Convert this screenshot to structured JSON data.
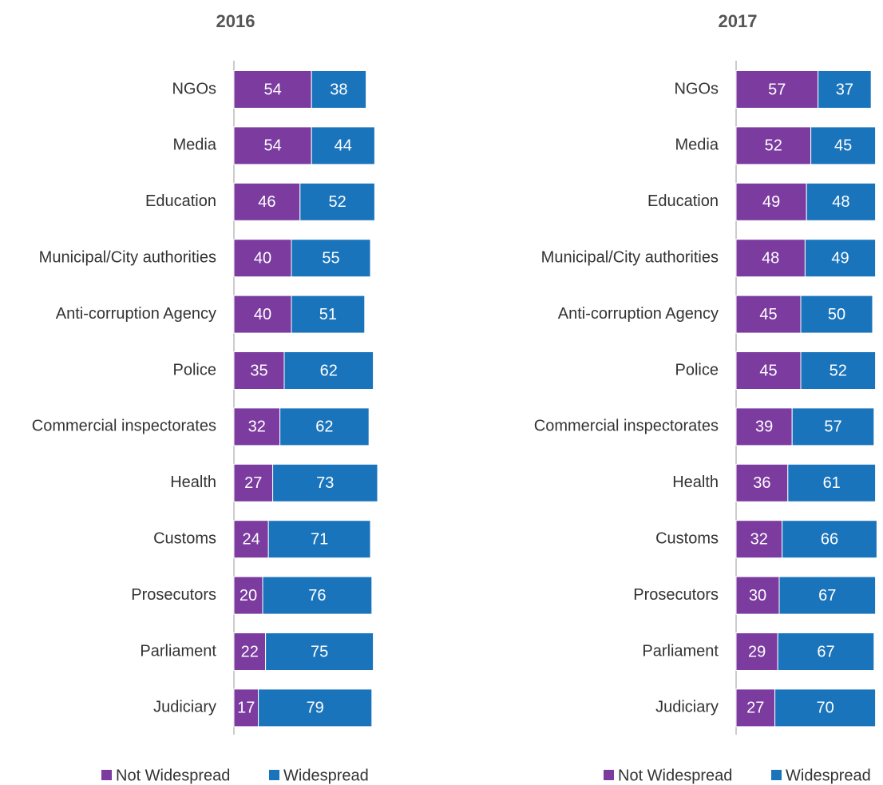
{
  "chart_data": [
    {
      "type": "bar",
      "stacked": true,
      "title": "2016",
      "categories": [
        "NGOs",
        "Media",
        "Education",
        "Municipal/City authorities",
        "Anti-corruption Agency",
        "Police",
        "Commercial inspectorates",
        "Health",
        "Customs",
        "Prosecutors",
        "Parliament",
        "Judiciary"
      ],
      "series": [
        {
          "name": "Not Widespread",
          "color": "#7b3b9f",
          "values": [
            54,
            54,
            46,
            40,
            40,
            35,
            32,
            27,
            24,
            20,
            22,
            17
          ]
        },
        {
          "name": "Widespread",
          "color": "#1a74bb",
          "values": [
            38,
            44,
            52,
            55,
            51,
            62,
            62,
            73,
            71,
            76,
            75,
            79
          ]
        }
      ]
    },
    {
      "type": "bar",
      "stacked": true,
      "title": "2017",
      "categories": [
        "NGOs",
        "Media",
        "Education",
        "Municipal/City authorities",
        "Anti-corruption Agency",
        "Police",
        "Commercial inspectorates",
        "Health",
        "Customs",
        "Prosecutors",
        "Parliament",
        "Judiciary"
      ],
      "series": [
        {
          "name": "Not Widespread",
          "color": "#7b3b9f",
          "values": [
            57,
            52,
            49,
            48,
            45,
            45,
            39,
            36,
            32,
            30,
            29,
            27
          ]
        },
        {
          "name": "Widespread",
          "color": "#1a74bb",
          "values": [
            37,
            45,
            48,
            49,
            50,
            52,
            57,
            61,
            66,
            67,
            67,
            70
          ]
        }
      ]
    }
  ]
}
